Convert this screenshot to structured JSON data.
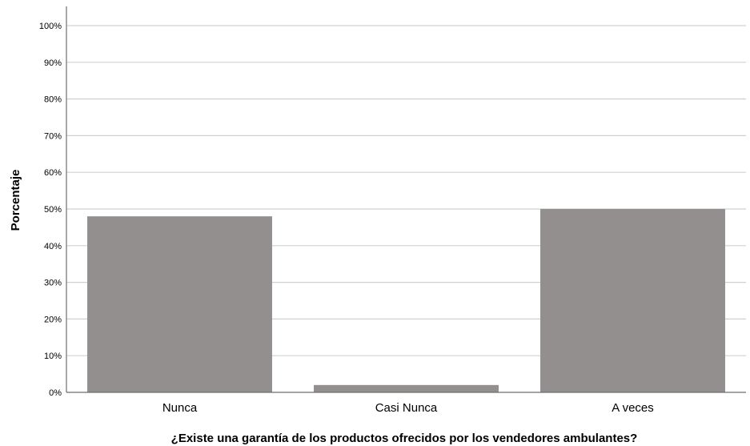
{
  "chart_data": {
    "type": "bar",
    "categories": [
      "Nunca",
      "Casi Nunca",
      "A veces"
    ],
    "values": [
      48,
      2,
      50
    ],
    "xlabel": "¿Existe una garantía de los productos ofrecidos por los vendedores ambulantes?",
    "ylabel": "Porcentaje",
    "ylim": [
      0,
      100
    ],
    "yticks": [
      0,
      10,
      20,
      30,
      40,
      50,
      60,
      70,
      80,
      90,
      100
    ],
    "ytick_labels": [
      "0%",
      "10%",
      "20%",
      "30%",
      "40%",
      "50%",
      "60%",
      "70%",
      "80%",
      "90%",
      "100%"
    ],
    "grid": true,
    "bar_color": "#938f8e",
    "gridline_color": "#d0d0d0",
    "axis_color": "#6e6e6e"
  }
}
